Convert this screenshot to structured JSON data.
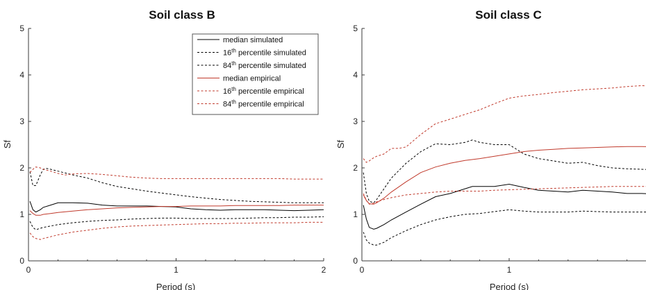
{
  "chart_data": [
    {
      "type": "line",
      "title": "Soil class B",
      "xlabel": "Period (s)",
      "ylabel": "Sf",
      "xlim": [
        0,
        2
      ],
      "ylim": [
        0,
        5
      ],
      "xticks": [
        "0",
        "1",
        "2"
      ],
      "yticks": [
        "0",
        "1",
        "2",
        "3",
        "4",
        "5"
      ],
      "grid": false,
      "legend": {
        "position": "top-right",
        "entries": [
          {
            "pre": "median simulated",
            "sup": "",
            "post": "",
            "color": "#000000",
            "dash": "solid"
          },
          {
            "pre": "16",
            "sup": "th",
            "post": " percentile simulated",
            "color": "#000000",
            "dash": "dashed"
          },
          {
            "pre": "84",
            "sup": "th",
            "post": " percentile simulated",
            "color": "#000000",
            "dash": "dashed"
          },
          {
            "pre": "median empirical",
            "sup": "",
            "post": "",
            "color": "#c0392b",
            "dash": "solid"
          },
          {
            "pre": "16",
            "sup": "th",
            "post": " percentile empirical",
            "color": "#c0392b",
            "dash": "dashed"
          },
          {
            "pre": "84",
            "sup": "th",
            "post": " percentile empirical",
            "color": "#c0392b",
            "dash": "dashed"
          }
        ]
      },
      "series": [
        {
          "color": "#000000",
          "dash": "solid",
          "x": [
            0.01,
            0.03,
            0.05,
            0.08,
            0.1,
            0.15,
            0.2,
            0.25,
            0.3,
            0.4,
            0.5,
            0.6,
            0.7,
            0.8,
            0.9,
            1.0,
            1.1,
            1.2,
            1.3,
            1.4,
            1.5,
            1.6,
            1.7,
            1.8,
            1.9,
            2.0
          ],
          "y": [
            1.28,
            1.1,
            1.05,
            1.1,
            1.15,
            1.2,
            1.25,
            1.25,
            1.25,
            1.24,
            1.2,
            1.18,
            1.18,
            1.18,
            1.17,
            1.16,
            1.12,
            1.1,
            1.09,
            1.1,
            1.1,
            1.1,
            1.09,
            1.08,
            1.09,
            1.1
          ]
        },
        {
          "color": "#000000",
          "dash": "dashed",
          "x": [
            0.01,
            0.03,
            0.05,
            0.08,
            0.1,
            0.15,
            0.2,
            0.3,
            0.4,
            0.5,
            0.6,
            0.7,
            0.8,
            0.9,
            1.0,
            1.1,
            1.2,
            1.3,
            1.4,
            1.5,
            1.6,
            1.7,
            1.8,
            1.9,
            2.0
          ],
          "y": [
            0.85,
            0.72,
            0.67,
            0.7,
            0.72,
            0.75,
            0.78,
            0.82,
            0.85,
            0.87,
            0.88,
            0.9,
            0.91,
            0.92,
            0.92,
            0.91,
            0.91,
            0.91,
            0.91,
            0.92,
            0.93,
            0.93,
            0.94,
            0.94,
            0.95
          ]
        },
        {
          "color": "#000000",
          "dash": "dashed",
          "x": [
            0.01,
            0.03,
            0.05,
            0.08,
            0.1,
            0.12,
            0.15,
            0.2,
            0.3,
            0.4,
            0.5,
            0.6,
            0.7,
            0.8,
            0.9,
            1.0,
            1.1,
            1.2,
            1.3,
            1.4,
            1.5,
            1.6,
            1.7,
            1.8,
            1.9,
            2.0
          ],
          "y": [
            1.92,
            1.62,
            1.62,
            1.85,
            1.97,
            1.99,
            1.97,
            1.93,
            1.85,
            1.78,
            1.68,
            1.6,
            1.55,
            1.5,
            1.46,
            1.42,
            1.38,
            1.35,
            1.32,
            1.3,
            1.28,
            1.27,
            1.26,
            1.25,
            1.25,
            1.25
          ]
        },
        {
          "color": "#c0392b",
          "dash": "solid",
          "x": [
            0.01,
            0.03,
            0.05,
            0.08,
            0.1,
            0.15,
            0.2,
            0.3,
            0.4,
            0.5,
            0.6,
            0.7,
            0.8,
            0.9,
            1.0,
            1.1,
            1.2,
            1.3,
            1.4,
            1.5,
            1.6,
            1.7,
            1.8,
            1.9,
            2.0
          ],
          "y": [
            1.08,
            1.02,
            0.98,
            0.98,
            1.0,
            1.02,
            1.04,
            1.07,
            1.1,
            1.12,
            1.14,
            1.15,
            1.16,
            1.17,
            1.17,
            1.18,
            1.18,
            1.18,
            1.19,
            1.19,
            1.19,
            1.19,
            1.2,
            1.2,
            1.2
          ]
        },
        {
          "color": "#c0392b",
          "dash": "dashed",
          "x": [
            0.01,
            0.03,
            0.05,
            0.08,
            0.1,
            0.15,
            0.2,
            0.3,
            0.4,
            0.5,
            0.6,
            0.7,
            0.8,
            0.9,
            1.0,
            1.1,
            1.2,
            1.3,
            1.4,
            1.5,
            1.6,
            1.7,
            1.8,
            1.9,
            2.0
          ],
          "y": [
            0.6,
            0.52,
            0.48,
            0.46,
            0.48,
            0.52,
            0.56,
            0.62,
            0.66,
            0.7,
            0.73,
            0.75,
            0.76,
            0.77,
            0.78,
            0.79,
            0.8,
            0.8,
            0.81,
            0.81,
            0.82,
            0.82,
            0.82,
            0.83,
            0.83
          ]
        },
        {
          "color": "#c0392b",
          "dash": "dashed",
          "x": [
            0.01,
            0.03,
            0.05,
            0.08,
            0.1,
            0.15,
            0.2,
            0.25,
            0.3,
            0.4,
            0.5,
            0.6,
            0.7,
            0.8,
            0.9,
            1.0,
            1.1,
            1.2,
            1.3,
            1.4,
            1.5,
            1.6,
            1.7,
            1.8,
            1.9,
            2.0
          ],
          "y": [
            1.9,
            1.97,
            2.02,
            2.0,
            1.97,
            1.93,
            1.88,
            1.85,
            1.87,
            1.88,
            1.86,
            1.83,
            1.8,
            1.78,
            1.77,
            1.77,
            1.77,
            1.77,
            1.77,
            1.77,
            1.77,
            1.77,
            1.77,
            1.76,
            1.76,
            1.76
          ]
        }
      ]
    },
    {
      "type": "line",
      "title": "Soil class C",
      "xlabel": "Period (s)",
      "ylabel": "Sf",
      "xlim": [
        0,
        2
      ],
      "ylim": [
        0,
        5
      ],
      "xticks": [
        "0",
        "1"
      ],
      "yticks": [
        "0",
        "1",
        "2",
        "3",
        "4",
        "5"
      ],
      "grid": false,
      "series": [
        {
          "color": "#000000",
          "dash": "solid",
          "x": [
            0.01,
            0.03,
            0.05,
            0.08,
            0.1,
            0.15,
            0.2,
            0.3,
            0.4,
            0.5,
            0.6,
            0.7,
            0.75,
            0.8,
            0.9,
            1.0,
            1.1,
            1.2,
            1.3,
            1.4,
            1.5,
            1.6,
            1.7,
            1.8,
            1.9,
            2.0
          ],
          "y": [
            1.2,
            0.9,
            0.72,
            0.68,
            0.7,
            0.78,
            0.88,
            1.05,
            1.22,
            1.38,
            1.45,
            1.55,
            1.6,
            1.6,
            1.6,
            1.65,
            1.58,
            1.52,
            1.5,
            1.48,
            1.52,
            1.5,
            1.48,
            1.45,
            1.45,
            1.44
          ]
        },
        {
          "color": "#000000",
          "dash": "dashed",
          "x": [
            0.01,
            0.03,
            0.05,
            0.08,
            0.1,
            0.15,
            0.2,
            0.3,
            0.4,
            0.5,
            0.6,
            0.7,
            0.8,
            0.9,
            1.0,
            1.1,
            1.2,
            1.3,
            1.4,
            1.5,
            1.6,
            1.7,
            1.8,
            1.9,
            2.0
          ],
          "y": [
            0.62,
            0.45,
            0.38,
            0.34,
            0.34,
            0.4,
            0.5,
            0.65,
            0.78,
            0.88,
            0.95,
            1.0,
            1.02,
            1.06,
            1.1,
            1.07,
            1.05,
            1.05,
            1.05,
            1.07,
            1.06,
            1.05,
            1.05,
            1.05,
            1.05
          ]
        },
        {
          "color": "#000000",
          "dash": "dashed",
          "x": [
            0.01,
            0.03,
            0.05,
            0.08,
            0.1,
            0.15,
            0.2,
            0.3,
            0.4,
            0.5,
            0.6,
            0.7,
            0.75,
            0.8,
            0.9,
            1.0,
            1.1,
            1.2,
            1.3,
            1.4,
            1.5,
            1.6,
            1.7,
            1.8,
            1.9,
            2.0
          ],
          "y": [
            1.9,
            1.45,
            1.28,
            1.25,
            1.32,
            1.55,
            1.78,
            2.1,
            2.35,
            2.52,
            2.5,
            2.55,
            2.6,
            2.55,
            2.5,
            2.5,
            2.3,
            2.2,
            2.15,
            2.1,
            2.12,
            2.05,
            2.0,
            1.98,
            1.97,
            1.96
          ]
        },
        {
          "color": "#c0392b",
          "dash": "solid",
          "x": [
            0.01,
            0.03,
            0.05,
            0.08,
            0.1,
            0.15,
            0.2,
            0.3,
            0.4,
            0.5,
            0.6,
            0.7,
            0.8,
            0.9,
            1.0,
            1.1,
            1.2,
            1.3,
            1.4,
            1.5,
            1.6,
            1.7,
            1.8,
            1.9,
            2.0
          ],
          "y": [
            1.42,
            1.3,
            1.23,
            1.22,
            1.25,
            1.35,
            1.48,
            1.7,
            1.9,
            2.02,
            2.1,
            2.16,
            2.2,
            2.25,
            2.3,
            2.35,
            2.38,
            2.4,
            2.42,
            2.43,
            2.44,
            2.45,
            2.46,
            2.46,
            2.45
          ]
        },
        {
          "color": "#c0392b",
          "dash": "dashed",
          "x": [
            0.01,
            0.03,
            0.05,
            0.08,
            0.1,
            0.15,
            0.2,
            0.3,
            0.4,
            0.5,
            0.6,
            0.7,
            0.8,
            0.9,
            1.0,
            1.1,
            1.2,
            1.3,
            1.4,
            1.5,
            1.6,
            1.7,
            1.8,
            1.9,
            2.0
          ],
          "y": [
            1.45,
            1.3,
            1.22,
            1.24,
            1.27,
            1.32,
            1.36,
            1.42,
            1.45,
            1.48,
            1.5,
            1.5,
            1.5,
            1.52,
            1.53,
            1.54,
            1.55,
            1.56,
            1.57,
            1.58,
            1.59,
            1.6,
            1.6,
            1.6,
            1.6
          ]
        },
        {
          "color": "#c0392b",
          "dash": "dashed",
          "x": [
            0.01,
            0.03,
            0.05,
            0.08,
            0.1,
            0.15,
            0.2,
            0.25,
            0.3,
            0.4,
            0.5,
            0.6,
            0.7,
            0.8,
            0.9,
            1.0,
            1.1,
            1.2,
            1.3,
            1.4,
            1.5,
            1.6,
            1.7,
            1.8,
            1.9,
            2.0
          ],
          "y": [
            2.2,
            2.12,
            2.15,
            2.22,
            2.25,
            2.3,
            2.42,
            2.42,
            2.45,
            2.72,
            2.95,
            3.05,
            3.15,
            3.25,
            3.38,
            3.5,
            3.55,
            3.58,
            3.62,
            3.65,
            3.68,
            3.7,
            3.72,
            3.75,
            3.77,
            3.75
          ]
        }
      ]
    }
  ]
}
